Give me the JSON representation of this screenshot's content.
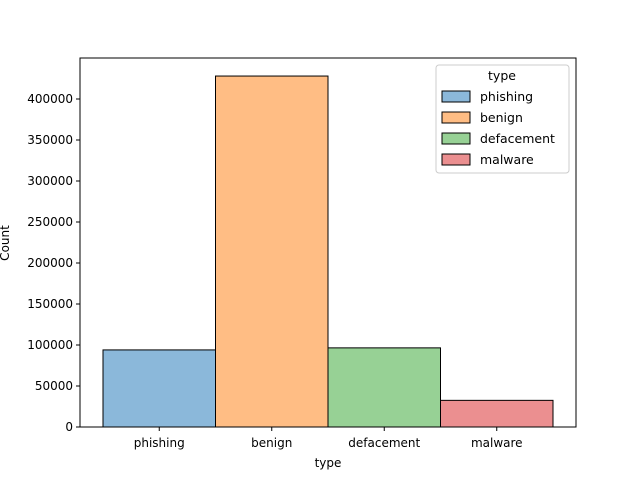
{
  "chart_data": {
    "type": "bar",
    "categories": [
      "phishing",
      "benign",
      "defacement",
      "malware"
    ],
    "values": [
      94000,
      428000,
      96500,
      32500
    ],
    "colors": [
      "#8bb8da",
      "#ffbd84",
      "#97d195",
      "#eb8f90"
    ],
    "xlabel": "type",
    "ylabel": "Count",
    "ylim": [
      0,
      450000
    ],
    "yticks": [
      0,
      50000,
      100000,
      150000,
      200000,
      250000,
      300000,
      350000,
      400000
    ],
    "ytick_labels": [
      "0",
      "50000",
      "100000",
      "150000",
      "200000",
      "250000",
      "300000",
      "350000",
      "400000"
    ],
    "grid": false,
    "legend": {
      "title": "type",
      "position": "top-right",
      "entries": [
        "phishing",
        "benign",
        "defacement",
        "malware"
      ]
    }
  }
}
